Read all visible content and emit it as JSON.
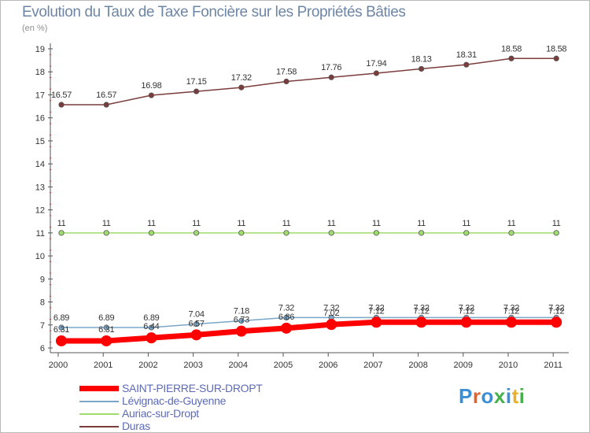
{
  "chart_data": {
    "type": "line",
    "title": "Evolution du Taux de Taxe Foncière sur les Propriétés Bâties",
    "ylabel": "(en %)",
    "xlabel": "",
    "ylim": [
      6,
      19
    ],
    "yticks": [
      6,
      7,
      8,
      9,
      10,
      11,
      12,
      13,
      14,
      15,
      16,
      17,
      18,
      19
    ],
    "categories": [
      "2000",
      "2001",
      "2002",
      "2003",
      "2004",
      "2005",
      "2006",
      "2007",
      "2008",
      "2009",
      "2010",
      "2011"
    ],
    "series": [
      {
        "name": "SAINT-PIERRE-SUR-DROPT",
        "color": "#ff0000",
        "values": [
          6.31,
          6.31,
          6.44,
          6.57,
          6.73,
          6.86,
          7.02,
          7.12,
          7.12,
          7.12,
          7.12,
          7.12
        ],
        "labels": [
          "6.31",
          "6.31",
          "6.44",
          "6.57",
          "6.73",
          "6.86",
          "7.02",
          "7.12",
          "7.12",
          "7.12",
          "7.12",
          "7.12"
        ]
      },
      {
        "name": "Lévignac-de-Guyenne",
        "color": "#7aa7c7",
        "values": [
          6.89,
          6.89,
          6.89,
          7.04,
          7.18,
          7.32,
          7.32,
          7.32,
          7.32,
          7.32,
          7.32,
          7.32
        ],
        "labels": [
          "6.89",
          "6.89",
          "6.89",
          "7.04",
          "7.18",
          "7.32",
          "7.32",
          "7.32",
          "7.32",
          "7.32",
          "7.32",
          "7.32"
        ]
      },
      {
        "name": "Auriac-sur-Dropt",
        "color": "#9fdc6e",
        "values": [
          11,
          11,
          11,
          11,
          11,
          11,
          11,
          11,
          11,
          11,
          11,
          11
        ],
        "labels": [
          "11",
          "11",
          "11",
          "11",
          "11",
          "11",
          "11",
          "11",
          "11",
          "11",
          "11",
          "11"
        ]
      },
      {
        "name": "Duras",
        "color": "#7b3c3c",
        "values": [
          16.57,
          16.57,
          16.98,
          17.15,
          17.32,
          17.58,
          17.76,
          17.94,
          18.13,
          18.31,
          18.58,
          18.58
        ],
        "labels": [
          "16.57",
          "16.57",
          "16.98",
          "17.15",
          "17.32",
          "17.58",
          "17.76",
          "17.94",
          "18.13",
          "18.31",
          "18.58",
          "18.58"
        ]
      }
    ],
    "grid": false,
    "legend": "bottom-left"
  },
  "brand": {
    "text": "Proxiti",
    "colors": [
      "#3a8fd6",
      "#e5622a",
      "#3a8fd6",
      "#46b04a",
      "#3a8fd6",
      "#e8b12a",
      "#46b04a"
    ]
  }
}
